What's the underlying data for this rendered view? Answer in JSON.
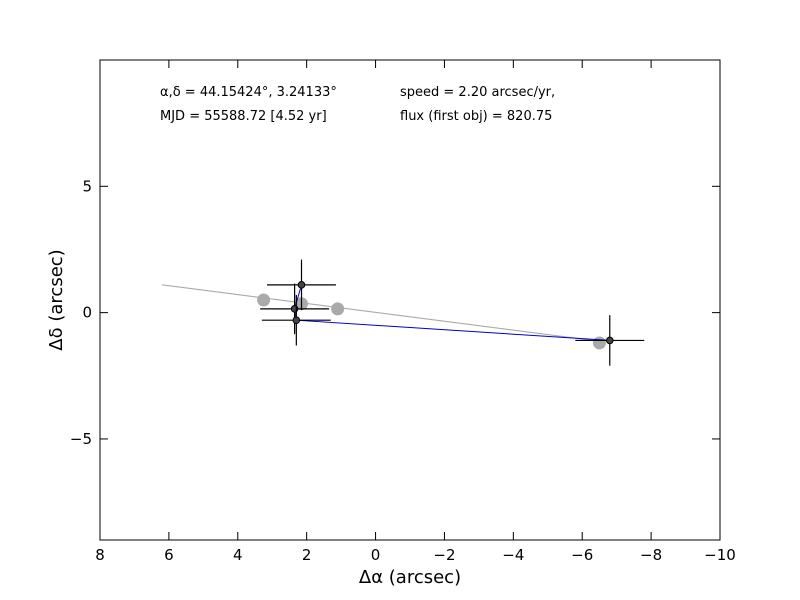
{
  "chart_data": {
    "type": "scatter",
    "xlabel": "Δα (arcsec)",
    "ylabel": "Δδ (arcsec)",
    "xlim": [
      8,
      -10
    ],
    "ylim": [
      -9,
      10
    ],
    "xticks": [
      8,
      6,
      4,
      2,
      0,
      -2,
      -4,
      -6,
      -8,
      -10
    ],
    "xtick_labels": [
      "8",
      "6",
      "4",
      "2",
      "0",
      "−2",
      "−4",
      "−6",
      "−8",
      "−10"
    ],
    "yticks": [
      -5,
      0,
      5
    ],
    "ytick_labels": [
      "−5",
      "0",
      "5"
    ],
    "grid": false,
    "annotations": [
      "α,δ = 44.15424°, 3.24133°",
      "MJD = 55588.72 [4.52 yr]",
      "speed = 2.20 arcsec/yr,",
      "flux (first obj) = 820.75"
    ],
    "fit_line": {
      "color": "#aaaaaa",
      "x": [
        6.2,
        -6.6
      ],
      "y": [
        1.1,
        -1.15
      ]
    },
    "model_points": {
      "color": "#aaaaaa",
      "x": [
        3.25,
        2.15,
        1.1,
        -6.5
      ],
      "y": [
        0.5,
        0.35,
        0.15,
        -1.2
      ]
    },
    "measurements": {
      "color": "#000000",
      "line_color": "#0000cc",
      "x": [
        2.15,
        2.35,
        2.3,
        -6.8
      ],
      "y": [
        1.1,
        0.15,
        -0.3,
        -1.1
      ],
      "xerr": [
        1.0,
        1.0,
        1.0,
        1.0
      ],
      "yerr": [
        1.0,
        1.0,
        1.0,
        1.0
      ]
    }
  }
}
